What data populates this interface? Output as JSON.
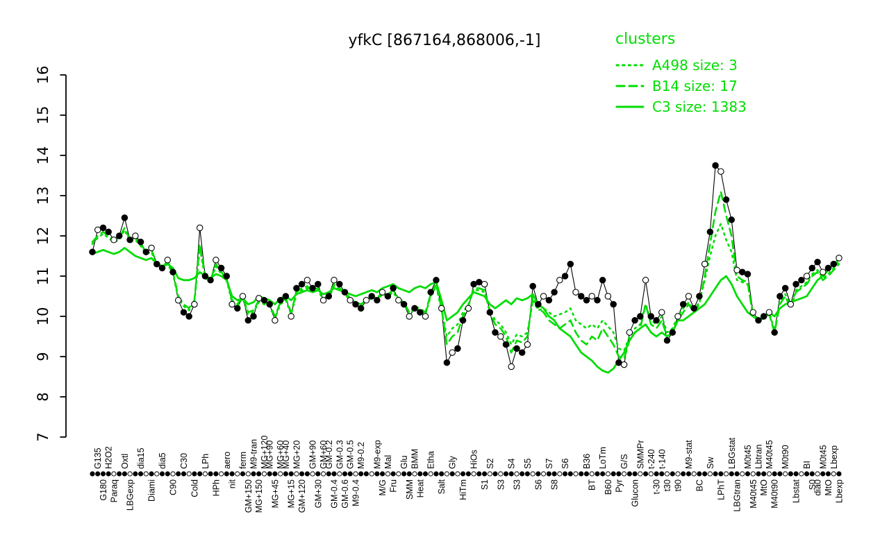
{
  "chart_data": {
    "type": "line",
    "title": "yfkC [867164,868006,-1]",
    "xlabel": "",
    "ylabel": "",
    "ylim": [
      7,
      16
    ],
    "yticks": [
      7,
      8,
      9,
      10,
      11,
      12,
      13,
      14,
      15,
      16
    ],
    "grid": false,
    "x_count": 140,
    "colors": {
      "cluster": "#00dd00",
      "gene": "#000000"
    },
    "legend": {
      "title": "clusters",
      "position": "top-right",
      "entries": [
        {
          "name": "A498",
          "size": 3,
          "style": "dotted",
          "label": "A498 size: 3"
        },
        {
          "name": "B14",
          "size": 17,
          "style": "dashed",
          "label": "B14 size: 17"
        },
        {
          "name": "C3",
          "size": 1383,
          "style": "solid",
          "label": "C3 size: 1383"
        }
      ]
    },
    "series": [
      {
        "name": "yfkC",
        "role": "gene",
        "color": "#000000",
        "style": "line-with-points",
        "markers": "10110111011011010110011011010110110110110110101101101101101011011010110110110101101101101101101101100110110110101101101101101101110110110110",
        "values": [
          11.6,
          12.15,
          12.2,
          12.1,
          11.9,
          12.0,
          12.45,
          11.9,
          12.0,
          11.85,
          11.6,
          11.7,
          11.3,
          11.2,
          11.4,
          11.1,
          10.4,
          10.1,
          10.0,
          10.3,
          12.2,
          11.0,
          10.9,
          11.4,
          11.2,
          11.0,
          10.3,
          10.2,
          10.5,
          9.9,
          10.0,
          10.45,
          10.4,
          10.3,
          9.9,
          10.4,
          10.5,
          10.0,
          10.7,
          10.8,
          10.9,
          10.7,
          10.8,
          10.4,
          10.5,
          10.9,
          10.8,
          10.6,
          10.4,
          10.3,
          10.2,
          10.4,
          10.5,
          10.4,
          10.6,
          10.5,
          10.7,
          10.4,
          10.3,
          10.0,
          10.2,
          10.1,
          10.0,
          10.6,
          10.9,
          10.2,
          8.85,
          9.1,
          9.2,
          9.9,
          10.2,
          10.8,
          10.85,
          10.8,
          10.1,
          9.6,
          9.5,
          9.3,
          8.75,
          9.2,
          9.1,
          9.3,
          10.75,
          10.3,
          10.5,
          10.4,
          10.6,
          10.9,
          11.0,
          11.3,
          10.6,
          10.5,
          10.4,
          10.5,
          10.4,
          10.9,
          10.5,
          10.3,
          8.85,
          8.8,
          9.6,
          9.9,
          10.0,
          10.9,
          10.0,
          9.9,
          10.1,
          9.4,
          9.6,
          10.0,
          10.3,
          10.5,
          10.2,
          10.5,
          11.3,
          12.1,
          13.75,
          13.6,
          12.9,
          12.4,
          11.15,
          11.1,
          11.05,
          10.1,
          9.9,
          10.0,
          10.1,
          9.6,
          10.5,
          10.7,
          10.3,
          10.8,
          10.9,
          11.0,
          11.2,
          11.35,
          11.1,
          11.2,
          11.3,
          11.45
        ]
      },
      {
        "name": "A498",
        "role": "cluster",
        "style": "dotted",
        "values": [
          11.8,
          11.95,
          12.05,
          11.95,
          11.85,
          11.9,
          12.15,
          11.85,
          11.9,
          11.75,
          11.55,
          11.6,
          11.25,
          11.2,
          11.3,
          11.05,
          10.45,
          10.25,
          10.15,
          10.35,
          11.7,
          10.95,
          10.85,
          11.25,
          11.05,
          10.9,
          10.35,
          10.25,
          10.45,
          10.05,
          10.1,
          10.35,
          10.3,
          10.25,
          9.95,
          10.3,
          10.4,
          10.05,
          10.55,
          10.65,
          10.7,
          10.6,
          10.65,
          10.4,
          10.45,
          10.75,
          10.65,
          10.55,
          10.4,
          10.3,
          10.25,
          10.35,
          10.45,
          10.4,
          10.55,
          10.5,
          10.6,
          10.4,
          10.3,
          10.05,
          10.2,
          10.15,
          10.05,
          10.5,
          10.75,
          10.15,
          9.5,
          9.7,
          9.8,
          10.1,
          10.3,
          10.65,
          10.65,
          10.6,
          10.15,
          9.9,
          9.8,
          9.6,
          9.3,
          9.55,
          9.5,
          9.6,
          10.4,
          10.15,
          10.2,
          10.1,
          10.0,
          10.05,
          10.1,
          10.2,
          9.9,
          9.8,
          9.7,
          9.8,
          9.7,
          9.9,
          9.75,
          9.6,
          9.2,
          9.15,
          9.5,
          9.7,
          9.8,
          10.3,
          9.9,
          9.8,
          10.0,
          9.6,
          9.7,
          10.0,
          10.2,
          10.35,
          10.15,
          10.35,
          10.9,
          11.5,
          12.0,
          12.3,
          11.9,
          11.6,
          10.9,
          10.85,
          10.8,
          10.05,
          9.95,
          10.0,
          10.1,
          9.65,
          10.35,
          10.55,
          10.25,
          10.65,
          10.75,
          10.85,
          11.05,
          11.15,
          10.95,
          11.05,
          11.2,
          11.35
        ]
      },
      {
        "name": "B14",
        "role": "cluster",
        "style": "dashed",
        "values": [
          11.85,
          12.0,
          12.1,
          12.0,
          11.9,
          11.95,
          12.2,
          11.9,
          11.95,
          11.8,
          11.6,
          11.65,
          11.3,
          11.25,
          11.35,
          11.1,
          10.5,
          10.3,
          10.2,
          10.4,
          11.8,
          11.0,
          10.9,
          11.3,
          11.1,
          10.95,
          10.4,
          10.3,
          10.5,
          10.1,
          10.15,
          10.4,
          10.35,
          10.3,
          10.0,
          10.35,
          10.45,
          10.1,
          10.6,
          10.7,
          10.75,
          10.65,
          10.7,
          10.45,
          10.5,
          10.8,
          10.7,
          10.6,
          10.45,
          10.35,
          10.3,
          10.4,
          10.5,
          10.45,
          10.6,
          10.55,
          10.65,
          10.45,
          10.35,
          10.1,
          10.25,
          10.2,
          10.1,
          10.55,
          10.8,
          10.2,
          9.3,
          9.5,
          9.6,
          10.0,
          10.25,
          10.7,
          10.7,
          10.65,
          10.1,
          9.8,
          9.7,
          9.5,
          9.1,
          9.4,
          9.35,
          9.5,
          10.5,
          10.2,
          10.1,
          9.9,
          9.8,
          9.7,
          9.8,
          9.9,
          9.6,
          9.4,
          9.3,
          9.5,
          9.4,
          9.7,
          9.5,
          9.3,
          9.0,
          8.95,
          9.4,
          9.6,
          9.7,
          10.3,
          9.8,
          9.7,
          9.9,
          9.5,
          9.6,
          9.9,
          10.1,
          10.3,
          10.1,
          10.3,
          11.0,
          11.8,
          12.6,
          13.1,
          12.5,
          12.0,
          11.0,
          10.9,
          10.85,
          10.0,
          9.9,
          9.95,
          10.05,
          9.6,
          10.3,
          10.5,
          10.2,
          10.6,
          10.7,
          10.8,
          11.0,
          11.1,
          10.9,
          11.0,
          11.15,
          11.3
        ]
      },
      {
        "name": "C3",
        "role": "cluster",
        "style": "solid",
        "values": [
          11.55,
          11.6,
          11.65,
          11.6,
          11.55,
          11.6,
          11.7,
          11.6,
          11.5,
          11.45,
          11.4,
          11.45,
          11.3,
          11.25,
          11.3,
          11.2,
          10.95,
          10.9,
          10.9,
          10.95,
          11.1,
          11.0,
          10.95,
          11.05,
          11.0,
          10.9,
          10.5,
          10.4,
          10.45,
          10.3,
          10.35,
          10.5,
          10.45,
          10.4,
          10.3,
          10.45,
          10.5,
          10.4,
          10.55,
          10.6,
          10.65,
          10.6,
          10.65,
          10.55,
          10.6,
          10.7,
          10.65,
          10.6,
          10.55,
          10.5,
          10.55,
          10.6,
          10.65,
          10.6,
          10.7,
          10.75,
          10.8,
          10.7,
          10.65,
          10.6,
          10.7,
          10.75,
          10.7,
          10.8,
          10.85,
          10.4,
          9.9,
          10.0,
          10.1,
          10.3,
          10.45,
          10.6,
          10.55,
          10.5,
          10.3,
          10.2,
          10.3,
          10.4,
          10.3,
          10.45,
          10.4,
          10.45,
          10.55,
          10.3,
          10.2,
          10.0,
          9.9,
          9.7,
          9.6,
          9.5,
          9.3,
          9.1,
          9.0,
          8.9,
          8.75,
          8.65,
          8.6,
          8.7,
          8.9,
          9.1,
          9.4,
          9.6,
          9.7,
          9.8,
          9.6,
          9.5,
          9.6,
          9.5,
          9.6,
          9.9,
          9.9,
          10.0,
          10.1,
          10.2,
          10.3,
          10.5,
          10.7,
          10.9,
          11.0,
          10.8,
          10.5,
          10.3,
          10.1,
          10.0,
          9.9,
          10.0,
          10.1,
          10.0,
          10.2,
          10.3,
          10.35,
          10.4,
          10.45,
          10.5,
          10.7,
          10.9,
          11.0,
          11.15,
          11.3,
          11.4
        ]
      }
    ],
    "axis_strip_markers": "11110110110101101101101101101011011011011010110110110110101101101101011011010110110101101101101101101101011010110110110110101101101101101101",
    "xlabels": [
      [
        1,
        1,
        "G135"
      ],
      [
        2,
        2,
        "G180"
      ],
      [
        3,
        1,
        "H2O2"
      ],
      [
        4,
        2,
        "Paraq"
      ],
      [
        6,
        1,
        "Oxtl"
      ],
      [
        7,
        2,
        "LBGexp"
      ],
      [
        9,
        1,
        "dia15"
      ],
      [
        11,
        2,
        "Diami"
      ],
      [
        13,
        1,
        "dia5"
      ],
      [
        15,
        2,
        "C90"
      ],
      [
        17,
        1,
        "C30"
      ],
      [
        19,
        2,
        "Cold"
      ],
      [
        21,
        1,
        "LPh"
      ],
      [
        23,
        2,
        "HPh"
      ],
      [
        25,
        1,
        "aero"
      ],
      [
        26,
        2,
        "nit"
      ],
      [
        28,
        1,
        "ferm"
      ],
      [
        29,
        2,
        "GM+150"
      ],
      [
        30,
        1,
        "M9-tran"
      ],
      [
        31,
        2,
        "MG+150"
      ],
      [
        32,
        1,
        "MG+120"
      ],
      [
        33,
        1,
        "MG+90"
      ],
      [
        34,
        2,
        "MG+45"
      ],
      [
        35,
        1,
        "MG+60"
      ],
      [
        36,
        1,
        "MG+40"
      ],
      [
        37,
        2,
        "MG+15"
      ],
      [
        38,
        1,
        "MG+20"
      ],
      [
        39,
        2,
        "GM+120"
      ],
      [
        41,
        1,
        "GM+90"
      ],
      [
        42,
        2,
        "GM+30"
      ],
      [
        43,
        1,
        "GM+60"
      ],
      [
        44,
        1,
        "GM-0.2"
      ],
      [
        45,
        2,
        "GM-0.4"
      ],
      [
        46,
        1,
        "GM-0.3"
      ],
      [
        47,
        2,
        "GM-0.6"
      ],
      [
        48,
        1,
        "GM-0.5"
      ],
      [
        49,
        2,
        "M9-0.4"
      ],
      [
        50,
        1,
        "M9-0.2"
      ],
      [
        53,
        1,
        "M9-exp"
      ],
      [
        54,
        2,
        "M/G"
      ],
      [
        55,
        1,
        "Mal"
      ],
      [
        56,
        2,
        "Fru"
      ],
      [
        58,
        1,
        "Glu"
      ],
      [
        59,
        2,
        "SMM"
      ],
      [
        60,
        1,
        "BMM"
      ],
      [
        61,
        2,
        "Heat"
      ],
      [
        63,
        1,
        "Etha"
      ],
      [
        65,
        2,
        "Salt"
      ],
      [
        67,
        1,
        "Gly"
      ],
      [
        69,
        2,
        "HiTm"
      ],
      [
        71,
        1,
        "HiOs"
      ],
      [
        73,
        2,
        "S1"
      ],
      [
        74,
        1,
        "S2"
      ],
      [
        76,
        2,
        "S3"
      ],
      [
        78,
        1,
        "S4"
      ],
      [
        79,
        2,
        "S3"
      ],
      [
        81,
        1,
        "S5"
      ],
      [
        83,
        2,
        "S6"
      ],
      [
        85,
        1,
        "S7"
      ],
      [
        86,
        2,
        "S8"
      ],
      [
        88,
        1,
        "S6"
      ],
      [
        92,
        1,
        "B36"
      ],
      [
        93,
        2,
        "BT"
      ],
      [
        95,
        1,
        "LoTm"
      ],
      [
        96,
        2,
        "B60"
      ],
      [
        98,
        2,
        "Pyr"
      ],
      [
        99,
        1,
        "G/S"
      ],
      [
        101,
        2,
        "Glucon"
      ],
      [
        102,
        1,
        "SMMPr"
      ],
      [
        104,
        1,
        "t-240"
      ],
      [
        105,
        2,
        "t-30"
      ],
      [
        106,
        1,
        "t-140"
      ],
      [
        107,
        2,
        "t30"
      ],
      [
        109,
        2,
        "t90"
      ],
      [
        111,
        1,
        "M9-stat"
      ],
      [
        113,
        2,
        "BC"
      ],
      [
        115,
        1,
        "Sw"
      ],
      [
        117,
        2,
        "LPhT"
      ],
      [
        119,
        1,
        "LBGstat"
      ],
      [
        120,
        2,
        "LBGtran"
      ],
      [
        122,
        1,
        "M0t45"
      ],
      [
        123,
        2,
        "M40t45"
      ],
      [
        124,
        1,
        "Lbtran"
      ],
      [
        125,
        2,
        "MtO"
      ],
      [
        126,
        1,
        "M40t45"
      ],
      [
        127,
        2,
        "M40t90"
      ],
      [
        129,
        1,
        "M0t90"
      ],
      [
        131,
        2,
        "Lbstat"
      ],
      [
        133,
        1,
        "BI"
      ],
      [
        134,
        2,
        "S0"
      ],
      [
        135,
        2,
        "dia0"
      ],
      [
        136,
        1,
        "M0t45"
      ],
      [
        137,
        2,
        "MtO"
      ],
      [
        138,
        1,
        "Lbexp"
      ],
      [
        139,
        2,
        "Lbexp"
      ]
    ]
  }
}
